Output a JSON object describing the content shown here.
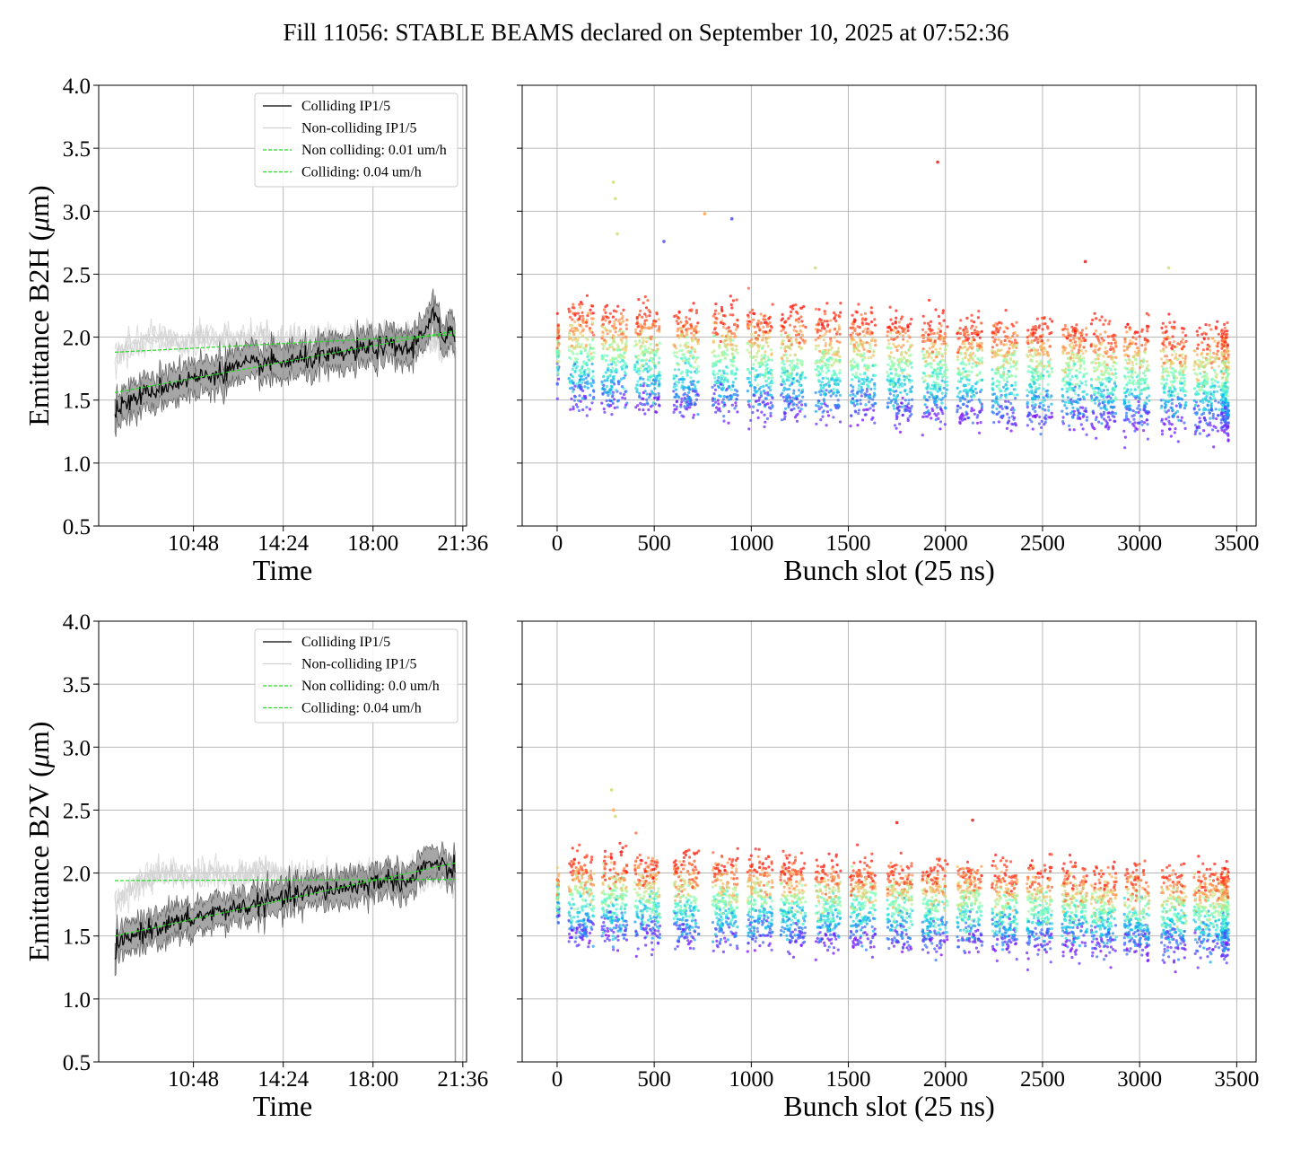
{
  "figure": {
    "title": "Fill 11056: STABLE BEAMS declared on September 10, 2025 at 07:52:36"
  },
  "chart_data": [
    {
      "id": "time-b2h",
      "type": "line",
      "title": "",
      "xlabel": "Time",
      "ylabel": "Emittance B2H (μm)",
      "ylabel_parts": [
        "Emittance B2H (",
        "μ",
        "m)"
      ],
      "x_unit": "hours",
      "xlim": [
        7.0,
        21.75
      ],
      "ylim": [
        0.5,
        4.0
      ],
      "yticks": [
        0.5,
        1.0,
        1.5,
        2.0,
        2.5,
        3.0,
        3.5,
        4.0
      ],
      "xticks": [
        10.8,
        14.4,
        18.0,
        21.6
      ],
      "xtick_labels": [
        "10:48",
        "14:24",
        "18:00",
        "21:36"
      ],
      "grid": true,
      "legend_position": "top-right",
      "legend": [
        "Colliding IP1/5",
        "Non-colliding IP1/5",
        "Non colliding: 0.01 um/h",
        "Colliding: 0.04 um/h"
      ],
      "series": [
        {
          "name": "Colliding IP1/5",
          "color": "#000000",
          "band_color": "#808080",
          "x": [
            7.65,
            8.5,
            9.5,
            10.5,
            11.5,
            12.5,
            13.5,
            14.5,
            15.5,
            16.5,
            17.5,
            18.5,
            19.5,
            20.0,
            20.5,
            20.8,
            21.1,
            21.3
          ],
          "y": [
            1.42,
            1.52,
            1.6,
            1.66,
            1.7,
            1.76,
            1.79,
            1.8,
            1.83,
            1.85,
            1.9,
            1.93,
            1.9,
            2.05,
            2.2,
            1.95,
            2.05,
            1.92
          ],
          "band": 0.13
        },
        {
          "name": "Non-colliding IP1/5",
          "color": "#d0d0d0",
          "x": [
            7.65,
            8.5,
            9.5,
            10.5,
            11.5,
            12.5,
            13.5,
            14.5,
            15.5,
            16.5,
            17.5,
            18.5,
            19.5,
            20.5,
            21.3
          ],
          "y": [
            1.85,
            1.95,
            1.98,
            1.95,
            2.0,
            1.96,
            2.02,
            1.95,
            1.98,
            1.97,
            2.0,
            1.98,
            2.02,
            1.97,
            1.98
          ]
        },
        {
          "name": "Non colliding: 0.01 um/h",
          "color": "#22dd22",
          "dashed": true,
          "x": [
            7.65,
            21.3
          ],
          "y": [
            1.88,
            2.02
          ]
        },
        {
          "name": "Colliding: 0.04 um/h",
          "color": "#22dd22",
          "dashed": true,
          "x": [
            7.65,
            21.3
          ],
          "y": [
            1.56,
            2.05
          ]
        }
      ]
    },
    {
      "id": "bunch-b2h",
      "type": "scatter",
      "title": "",
      "xlabel": "Bunch slot (25 ns)",
      "ylabel": "",
      "xlim": [
        -180,
        3600
      ],
      "ylim": [
        0.5,
        4.0
      ],
      "xticks": [
        0,
        500,
        1000,
        1500,
        2000,
        2500,
        3000,
        3500
      ],
      "grid": true,
      "color_scale": "rainbow",
      "trains_start": [
        0,
        60,
        230,
        400,
        600,
        800,
        980,
        1150,
        1330,
        1510,
        1700,
        1880,
        2060,
        2240,
        2420,
        2600,
        2750,
        2920,
        3110,
        3280,
        3420
      ],
      "train_length": 130,
      "band_center_start": 1.85,
      "band_center_end": 1.65,
      "band_halfwidth": 0.38,
      "outliers": [
        {
          "x": 290,
          "y": 3.23,
          "color": "#d8e08a"
        },
        {
          "x": 300,
          "y": 3.1,
          "color": "#d8e08a"
        },
        {
          "x": 310,
          "y": 2.82,
          "color": "#d8e08a"
        },
        {
          "x": 760,
          "y": 2.98,
          "color": "#ffb060"
        },
        {
          "x": 900,
          "y": 2.94,
          "color": "#6a6ae8"
        },
        {
          "x": 550,
          "y": 2.76,
          "color": "#6a6ae8"
        },
        {
          "x": 1960,
          "y": 3.39,
          "color": "#e84040"
        },
        {
          "x": 1330,
          "y": 2.55,
          "color": "#d8e08a"
        },
        {
          "x": 2720,
          "y": 2.6,
          "color": "#e84040"
        },
        {
          "x": 3150,
          "y": 2.55,
          "color": "#d8e08a"
        }
      ]
    },
    {
      "id": "time-b2v",
      "type": "line",
      "title": "",
      "xlabel": "Time",
      "ylabel": "Emittance B2V (μm)",
      "ylabel_parts": [
        "Emittance B2V (",
        "μ",
        "m)"
      ],
      "x_unit": "hours",
      "xlim": [
        7.0,
        21.75
      ],
      "ylim": [
        0.5,
        4.0
      ],
      "yticks": [
        0.5,
        1.0,
        1.5,
        2.0,
        2.5,
        3.0,
        3.5,
        4.0
      ],
      "xticks": [
        10.8,
        14.4,
        18.0,
        21.6
      ],
      "xtick_labels": [
        "10:48",
        "14:24",
        "18:00",
        "21:36"
      ],
      "grid": true,
      "legend_position": "top-right",
      "legend": [
        "Colliding IP1/5",
        "Non-colliding IP1/5",
        "Non colliding: 0.0 um/h",
        "Colliding: 0.04 um/h"
      ],
      "series": [
        {
          "name": "Colliding IP1/5",
          "color": "#000000",
          "band_color": "#808080",
          "x": [
            7.65,
            8.5,
            9.5,
            10.5,
            11.5,
            12.5,
            13.5,
            14.5,
            15.5,
            16.5,
            17.5,
            18.5,
            19.5,
            20.0,
            20.5,
            21.0,
            21.3
          ],
          "y": [
            1.4,
            1.52,
            1.58,
            1.62,
            1.68,
            1.72,
            1.76,
            1.8,
            1.85,
            1.87,
            1.9,
            1.95,
            1.93,
            2.05,
            2.08,
            2.02,
            2.0
          ],
          "band": 0.12
        },
        {
          "name": "Non-colliding IP1/5",
          "color": "#d0d0d0",
          "x": [
            7.65,
            8.5,
            9.5,
            10.5,
            11.5,
            12.5,
            13.5,
            14.5,
            15.5,
            16.5,
            17.5,
            18.5,
            19.5,
            20.5,
            21.3
          ],
          "y": [
            1.75,
            1.92,
            2.0,
            1.97,
            2.0,
            1.98,
            2.02,
            1.97,
            1.98,
            1.95,
            1.98,
            1.97,
            2.0,
            1.98,
            1.96
          ]
        },
        {
          "name": "Non colliding: 0.0 um/h",
          "color": "#22dd22",
          "dashed": true,
          "x": [
            7.65,
            21.3
          ],
          "y": [
            1.94,
            1.95
          ]
        },
        {
          "name": "Colliding: 0.04 um/h",
          "color": "#22dd22",
          "dashed": true,
          "x": [
            7.65,
            21.3
          ],
          "y": [
            1.5,
            2.08
          ]
        }
      ]
    },
    {
      "id": "bunch-b2v",
      "type": "scatter",
      "title": "",
      "xlabel": "Bunch slot (25 ns)",
      "ylabel": "",
      "xlim": [
        -180,
        3600
      ],
      "ylim": [
        0.5,
        4.0
      ],
      "xticks": [
        0,
        500,
        1000,
        1500,
        2000,
        2500,
        3000,
        3500
      ],
      "grid": true,
      "color_scale": "rainbow",
      "trains_start": [
        0,
        60,
        230,
        400,
        600,
        800,
        980,
        1150,
        1330,
        1510,
        1700,
        1880,
        2060,
        2240,
        2420,
        2600,
        2750,
        2920,
        3110,
        3280,
        3420
      ],
      "train_length": 130,
      "band_center_start": 1.8,
      "band_center_end": 1.68,
      "band_halfwidth": 0.3,
      "outliers": [
        {
          "x": 280,
          "y": 2.66,
          "color": "#d8e08a"
        },
        {
          "x": 290,
          "y": 2.5,
          "color": "#ffb060"
        },
        {
          "x": 300,
          "y": 2.45,
          "color": "#d8e08a"
        },
        {
          "x": 2140,
          "y": 2.42,
          "color": "#e84040"
        },
        {
          "x": 1750,
          "y": 2.4,
          "color": "#e84040"
        }
      ]
    }
  ]
}
